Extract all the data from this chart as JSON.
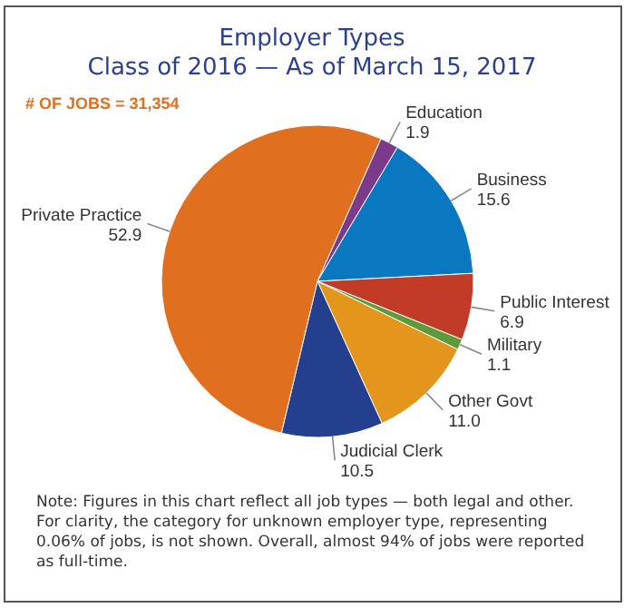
{
  "chart_data": {
    "type": "pie",
    "title": "Employer Types",
    "subtitle": "Class of 2016 — As of March 15, 2017",
    "categories": [
      "Education",
      "Business",
      "Public Interest",
      "Military",
      "Other Govt",
      "Judicial Clerk",
      "Private Practice"
    ],
    "values": [
      1.9,
      15.6,
      6.9,
      1.1,
      11.0,
      10.5,
      52.9
    ],
    "colors": [
      "#7b3a8a",
      "#0a78c0",
      "#c23b27",
      "#5e9a3a",
      "#e3951c",
      "#243f8e",
      "#e07020"
    ],
    "value_labels": [
      "1.9",
      "15.6",
      "6.9",
      "1.1",
      "11.0",
      "10.5",
      "52.9"
    ],
    "legend": false,
    "annotations": [
      "# OF JOBS = 31,354",
      "Note: Figures in this chart reflect all job types — both legal and other. For clarity, the category for unknown employer type, representing 0.06% of jobs, is not shown. Overall, almost 94% of jobs were reported as full-time."
    ]
  }
}
